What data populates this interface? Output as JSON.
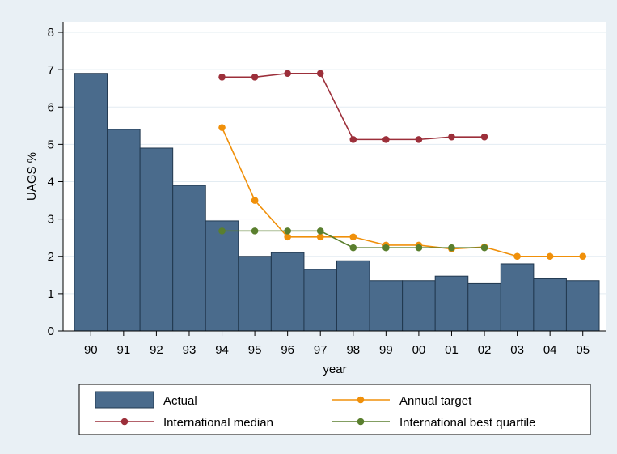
{
  "chart_data": {
    "type": "bar",
    "xlabel": "year",
    "ylabel": "UAGS %",
    "ylim": [
      0,
      8
    ],
    "yticks": [
      0,
      1,
      2,
      3,
      4,
      5,
      6,
      7,
      8
    ],
    "grid": true,
    "categories": [
      "90",
      "91",
      "92",
      "93",
      "94",
      "95",
      "96",
      "97",
      "98",
      "99",
      "00",
      "01",
      "02",
      "03",
      "04",
      "05"
    ],
    "series": [
      {
        "name": "Actual",
        "kind": "bar",
        "color": "#4a6b8c",
        "values": [
          6.9,
          5.4,
          4.9,
          3.9,
          2.95,
          2.0,
          2.1,
          1.65,
          1.88,
          1.35,
          1.35,
          1.47,
          1.27,
          1.8,
          1.4,
          1.35
        ]
      },
      {
        "name": "Annual target",
        "kind": "line",
        "color": "#f0900a",
        "values": [
          null,
          null,
          null,
          null,
          5.45,
          3.5,
          2.52,
          2.52,
          2.52,
          2.3,
          2.3,
          2.2,
          2.25,
          2.0,
          2.0,
          2.0
        ]
      },
      {
        "name": "International median",
        "kind": "line",
        "color": "#9c2f3a",
        "values": [
          null,
          null,
          null,
          null,
          6.8,
          6.8,
          6.9,
          6.9,
          5.13,
          5.13,
          5.13,
          5.2,
          5.2,
          null,
          null,
          null
        ]
      },
      {
        "name": "International best quartile",
        "kind": "line",
        "color": "#5a7f2e",
        "values": [
          null,
          null,
          null,
          null,
          2.68,
          2.68,
          2.68,
          2.68,
          2.23,
          2.23,
          2.23,
          2.23,
          2.23,
          null,
          null,
          null
        ]
      }
    ],
    "legend_position": "bottom"
  }
}
